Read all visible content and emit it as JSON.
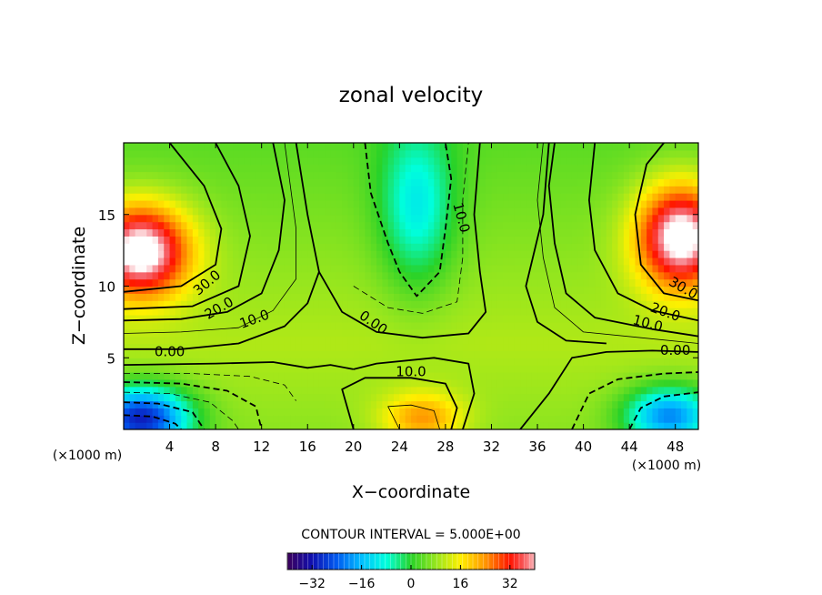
{
  "chart_data": {
    "type": "heatmap",
    "title": "zonal velocity",
    "xlabel": "X−coordinate",
    "ylabel": "Z−coordinate",
    "x_unit_left": "(×1000 m)",
    "x_unit_right": "(×1000 m)",
    "xlim": [
      0,
      50
    ],
    "ylim": [
      0,
      20
    ],
    "x_ticks": [
      4,
      8,
      12,
      16,
      20,
      24,
      28,
      32,
      36,
      40,
      44,
      48
    ],
    "y_ticks": [
      5,
      10,
      15
    ],
    "contour_interval_text": "CONTOUR INTERVAL = 5.000E+00",
    "colorbar": {
      "min": -40,
      "max": 40,
      "ticks": [
        -32,
        -16,
        0,
        16,
        32
      ],
      "tick_labels": [
        "−32",
        "−16",
        "0",
        "16",
        "32"
      ]
    },
    "grid": false,
    "contour_labels": [
      {
        "text": "30.0",
        "x": 7.5,
        "y": 10.0,
        "rotate": -40
      },
      {
        "text": "20.0",
        "x": 8.5,
        "y": 8.2,
        "rotate": -30
      },
      {
        "text": "10.0",
        "x": 11.5,
        "y": 7.4,
        "rotate": -20
      },
      {
        "text": "0.00",
        "x": 4.0,
        "y": 5.1,
        "rotate": 0
      },
      {
        "text": "0.00",
        "x": 21.5,
        "y": 7.2,
        "rotate": 35
      },
      {
        "text": "10.0",
        "x": 25.0,
        "y": 3.7,
        "rotate": 0
      },
      {
        "text": "10.0",
        "x": 29.0,
        "y": 14.7,
        "rotate": 75
      },
      {
        "text": "30.0",
        "x": 48.5,
        "y": 9.6,
        "rotate": 30
      },
      {
        "text": "20.0",
        "x": 47.0,
        "y": 7.9,
        "rotate": 20
      },
      {
        "text": "10.0",
        "x": 45.5,
        "y": 7.1,
        "rotate": 15
      },
      {
        "text": "0.00",
        "x": 48.0,
        "y": 5.2,
        "rotate": 0
      }
    ],
    "contour_lines": [
      {
        "value": 0,
        "style": "solid-thick",
        "points": [
          [
            0,
            5.6
          ],
          [
            5,
            5.6
          ],
          [
            10,
            6.0
          ],
          [
            14,
            7.2
          ],
          [
            16,
            8.8
          ],
          [
            17,
            11
          ],
          [
            16,
            15
          ],
          [
            15,
            20
          ]
        ]
      },
      {
        "value": 0,
        "style": "solid-thick",
        "points": [
          [
            17,
            11
          ],
          [
            19,
            8.2
          ],
          [
            22,
            6.8
          ],
          [
            26,
            6.4
          ],
          [
            30,
            6.7
          ],
          [
            31.5,
            8.2
          ],
          [
            31,
            11
          ],
          [
            30.5,
            15
          ],
          [
            31,
            20
          ]
        ]
      },
      {
        "value": 0,
        "style": "solid-thick",
        "points": [
          [
            0,
            4.5
          ],
          [
            8,
            4.6
          ],
          [
            13,
            4.7
          ],
          [
            16,
            4.3
          ],
          [
            18,
            4.5
          ],
          [
            20,
            4.2
          ]
        ]
      },
      {
        "value": 0,
        "style": "solid-thick",
        "points": [
          [
            29.5,
            0
          ],
          [
            30.5,
            2.5
          ],
          [
            30,
            4.6
          ],
          [
            27,
            5.0
          ],
          [
            22,
            4.6
          ],
          [
            20,
            4.2
          ]
        ]
      },
      {
        "value": 0,
        "style": "solid-thick",
        "points": [
          [
            34.5,
            0
          ],
          [
            37,
            2.5
          ],
          [
            39,
            5
          ],
          [
            42,
            5.4
          ],
          [
            46,
            5.5
          ],
          [
            50,
            5.4
          ]
        ]
      },
      {
        "value": 0,
        "style": "solid-thick",
        "points": [
          [
            37,
            20
          ],
          [
            36.5,
            15
          ],
          [
            35,
            10
          ],
          [
            36,
            7.5
          ],
          [
            38.5,
            6.2
          ],
          [
            42,
            6.0
          ]
        ]
      },
      {
        "value": 10,
        "style": "solid-thick",
        "points": [
          [
            0,
            7.6
          ],
          [
            5,
            7.7
          ],
          [
            9,
            8.2
          ],
          [
            12,
            9.5
          ],
          [
            13.5,
            12.5
          ],
          [
            14,
            16
          ],
          [
            13,
            20
          ]
        ]
      },
      {
        "value": 10,
        "style": "solid-thick",
        "points": [
          [
            20,
            0
          ],
          [
            19,
            2.8
          ],
          [
            21,
            3.6
          ],
          [
            25,
            3.6
          ],
          [
            28,
            3.2
          ],
          [
            29,
            1.5
          ],
          [
            28.5,
            0
          ]
        ]
      },
      {
        "value": 10,
        "style": "solid-thick",
        "points": [
          [
            50,
            6.5
          ],
          [
            46,
            7.0
          ],
          [
            41,
            7.8
          ],
          [
            38.5,
            9.5
          ],
          [
            37.5,
            13
          ],
          [
            37,
            17
          ],
          [
            37.5,
            20
          ]
        ]
      },
      {
        "value": 20,
        "style": "solid-thick",
        "points": [
          [
            0,
            8.4
          ],
          [
            6,
            8.6
          ],
          [
            10,
            10
          ],
          [
            11,
            13.5
          ],
          [
            10,
            17
          ],
          [
            8,
            20
          ]
        ]
      },
      {
        "value": 20,
        "style": "solid-thick",
        "points": [
          [
            50,
            7.6
          ],
          [
            46,
            8.3
          ],
          [
            43,
            9.5
          ],
          [
            41,
            12.5
          ],
          [
            40.5,
            16
          ],
          [
            41,
            20
          ]
        ]
      },
      {
        "value": 30,
        "style": "solid-thick",
        "points": [
          [
            0,
            9.6
          ],
          [
            5,
            10.0
          ],
          [
            8,
            11.5
          ],
          [
            8.5,
            14
          ],
          [
            7,
            17
          ],
          [
            4,
            20
          ]
        ]
      },
      {
        "value": 30,
        "style": "solid-thick",
        "points": [
          [
            50,
            9.0
          ],
          [
            47,
            9.5
          ],
          [
            45,
            11.5
          ],
          [
            44.5,
            15
          ],
          [
            45.5,
            18.5
          ],
          [
            47,
            20
          ]
        ]
      },
      {
        "value": 5,
        "style": "solid-thin",
        "points": [
          [
            0,
            6.7
          ],
          [
            5,
            6.8
          ],
          [
            10,
            7.1
          ],
          [
            13,
            8.3
          ],
          [
            15,
            10.5
          ],
          [
            15,
            14
          ],
          [
            14,
            20
          ]
        ]
      },
      {
        "value": 5,
        "style": "solid-thin",
        "points": [
          [
            50,
            6.0
          ],
          [
            45,
            6.4
          ],
          [
            40,
            6.8
          ],
          [
            37.5,
            8.5
          ],
          [
            36.5,
            12
          ],
          [
            36,
            16
          ],
          [
            36.5,
            20
          ]
        ]
      },
      {
        "value": 15,
        "style": "solid-thin",
        "points": [
          [
            24,
            0
          ],
          [
            23,
            1.6
          ],
          [
            25,
            1.7
          ],
          [
            27,
            1.3
          ],
          [
            27.5,
            0
          ]
        ]
      },
      {
        "value": -5,
        "style": "dashed-thin",
        "points": [
          [
            0,
            3.9
          ],
          [
            6,
            3.9
          ],
          [
            11,
            3.7
          ],
          [
            14,
            3.1
          ],
          [
            15,
            2
          ]
        ]
      },
      {
        "value": -5,
        "style": "dashed-thin",
        "points": [
          [
            20,
            10
          ],
          [
            23,
            8.5
          ],
          [
            26,
            8.1
          ],
          [
            29,
            8.9
          ],
          [
            29.5,
            12
          ],
          [
            29.5,
            16
          ],
          [
            30,
            20
          ]
        ]
      },
      {
        "value": -10,
        "style": "dashed-thick",
        "points": [
          [
            0,
            3.3
          ],
          [
            5,
            3.2
          ],
          [
            9,
            2.7
          ],
          [
            11.5,
            1.6
          ],
          [
            12,
            0
          ]
        ]
      },
      {
        "value": -10,
        "style": "dashed-thick",
        "points": [
          [
            21,
            20
          ],
          [
            21.5,
            16.5
          ],
          [
            23,
            13
          ],
          [
            24,
            11
          ],
          [
            25.5,
            9.3
          ],
          [
            27.5,
            11
          ],
          [
            28,
            14
          ],
          [
            28.5,
            17.5
          ],
          [
            28,
            20
          ]
        ]
      },
      {
        "value": -10,
        "style": "dashed-thick",
        "points": [
          [
            39,
            0
          ],
          [
            40.5,
            2.5
          ],
          [
            43,
            3.5
          ],
          [
            47,
            3.9
          ],
          [
            50,
            4.0
          ]
        ]
      },
      {
        "value": -15,
        "style": "dashed-thin",
        "points": [
          [
            0,
            2.6
          ],
          [
            4,
            2.5
          ],
          [
            7.5,
            1.9
          ],
          [
            9.5,
            0.6
          ],
          [
            10,
            0
          ]
        ]
      },
      {
        "value": -20,
        "style": "dashed-thick",
        "points": [
          [
            0,
            1.9
          ],
          [
            3,
            1.8
          ],
          [
            6,
            1.2
          ],
          [
            7,
            0
          ]
        ]
      },
      {
        "value": -20,
        "style": "dashed-thick",
        "points": [
          [
            44,
            0
          ],
          [
            45,
            1.5
          ],
          [
            47,
            2.3
          ],
          [
            50,
            2.6
          ]
        ]
      },
      {
        "value": -30,
        "style": "dashed-thick",
        "points": [
          [
            0,
            1.0
          ],
          [
            2.5,
            0.9
          ],
          [
            4.5,
            0.4
          ],
          [
            5,
            0
          ]
        ]
      }
    ],
    "field_sources": [
      {
        "x": 1.5,
        "y": 12.5,
        "value": 44,
        "sx": 4.2,
        "sy": 3.2
      },
      {
        "x": 48.5,
        "y": 13.5,
        "value": 44,
        "sx": 3.8,
        "sy": 3.6
      },
      {
        "x": 1.5,
        "y": 0.8,
        "value": -34,
        "sx": 4.2,
        "sy": 2.2
      },
      {
        "x": 47.5,
        "y": 1.0,
        "value": -24,
        "sx": 3.8,
        "sy": 2.0
      },
      {
        "x": 25.5,
        "y": 15.5,
        "value": -12,
        "sx": 3.2,
        "sy": 5.5
      },
      {
        "x": 26.0,
        "y": 0.8,
        "value": 20,
        "sx": 3.5,
        "sy": 1.8
      },
      {
        "x": 33.5,
        "y": 1.5,
        "value": 4,
        "sx": 2.5,
        "sy": 2.5
      },
      {
        "x": 24.0,
        "y": 5.5,
        "value": 4,
        "sx": 6,
        "sy": 2
      }
    ]
  }
}
